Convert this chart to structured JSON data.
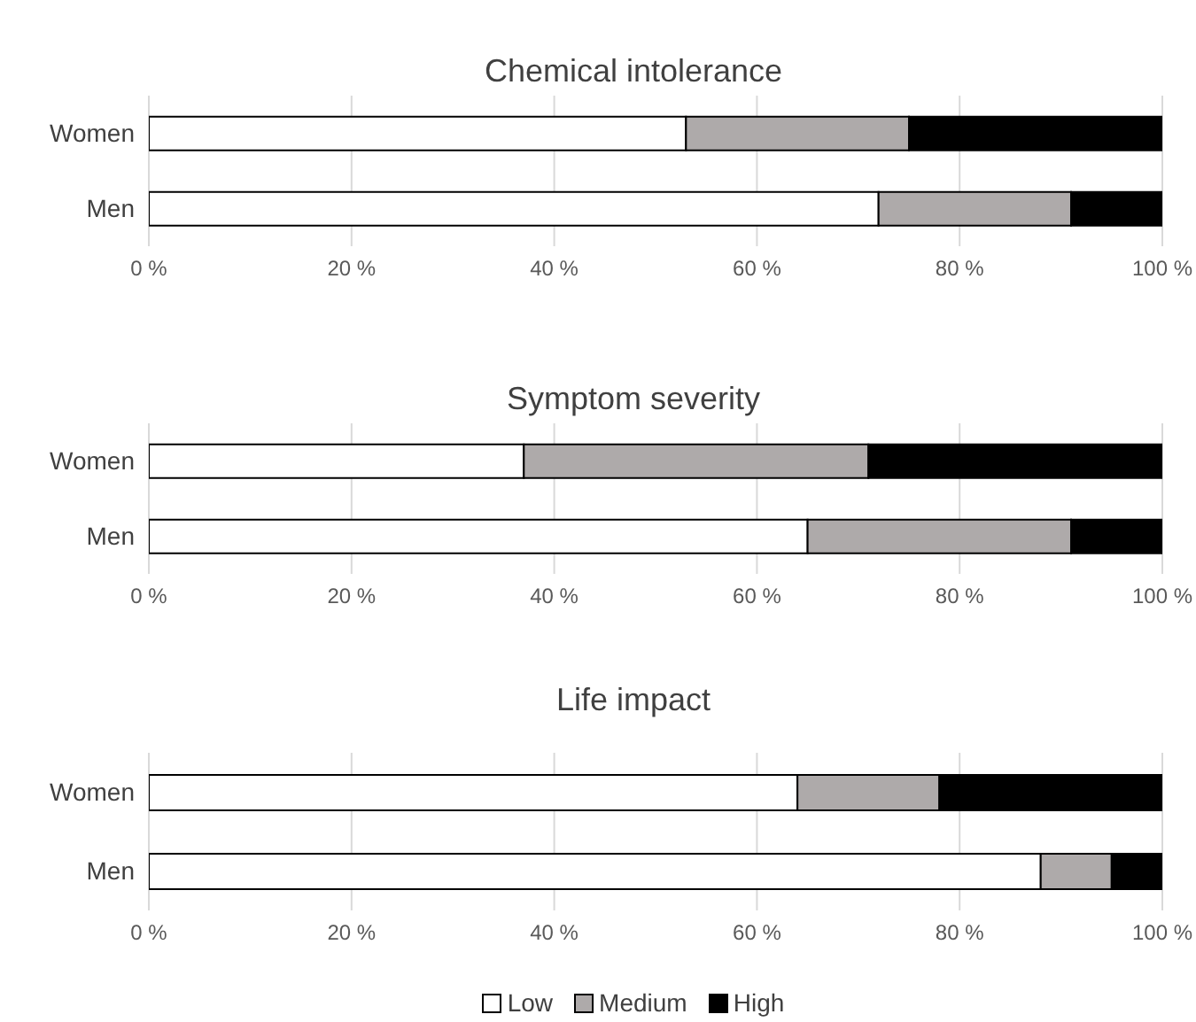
{
  "chart_data": [
    {
      "type": "bar",
      "orientation": "horizontal",
      "stacked": true,
      "title": "Chemical intolerance",
      "categories": [
        "Women",
        "Men"
      ],
      "xlim": [
        0,
        100
      ],
      "xticks": [
        {
          "value": 0,
          "label": "0 %"
        },
        {
          "value": 20,
          "label": "20 %"
        },
        {
          "value": 40,
          "label": "40 %"
        },
        {
          "value": 60,
          "label": "60 %"
        },
        {
          "value": 80,
          "label": "80 %"
        },
        {
          "value": 100,
          "label": "100 %"
        }
      ],
      "grid": "x",
      "legend": false,
      "series": [
        {
          "color": "#ffffff",
          "values": [
            53,
            72
          ]
        },
        {
          "color": "#aeaaaa",
          "values": [
            22,
            19
          ]
        },
        {
          "color": "#000000",
          "values": [
            25,
            9
          ]
        }
      ]
    },
    {
      "type": "bar",
      "orientation": "horizontal",
      "stacked": true,
      "title": "Symptom severity",
      "categories": [
        "Women",
        "Men"
      ],
      "xlim": [
        0,
        100
      ],
      "xticks": [
        {
          "value": 0,
          "label": "0 %"
        },
        {
          "value": 20,
          "label": "20 %"
        },
        {
          "value": 40,
          "label": "40 %"
        },
        {
          "value": 60,
          "label": "60 %"
        },
        {
          "value": 80,
          "label": "80 %"
        },
        {
          "value": 100,
          "label": "100 %"
        }
      ],
      "grid": "x",
      "legend": false,
      "series": [
        {
          "color": "#ffffff",
          "values": [
            37,
            65
          ]
        },
        {
          "color": "#aeaaaa",
          "values": [
            34,
            26
          ]
        },
        {
          "color": "#000000",
          "values": [
            29,
            9
          ]
        }
      ]
    },
    {
      "type": "bar",
      "orientation": "horizontal",
      "stacked": true,
      "title": "Life impact",
      "categories": [
        "Women",
        "Men"
      ],
      "xlim": [
        0,
        100
      ],
      "xticks": [
        {
          "value": 0,
          "label": "0 %"
        },
        {
          "value": 20,
          "label": "20 %"
        },
        {
          "value": 40,
          "label": "40 %"
        },
        {
          "value": 60,
          "label": "60 %"
        },
        {
          "value": 80,
          "label": "80 %"
        },
        {
          "value": 100,
          "label": "100 %"
        }
      ],
      "grid": "x",
      "legend": "bottom",
      "series": [
        {
          "name": "Low",
          "color": "#ffffff",
          "values": [
            64,
            88
          ]
        },
        {
          "name": "Medium",
          "color": "#aeaaaa",
          "values": [
            14,
            7
          ]
        },
        {
          "name": "High",
          "color": "#000000",
          "values": [
            22,
            5
          ]
        }
      ]
    }
  ]
}
